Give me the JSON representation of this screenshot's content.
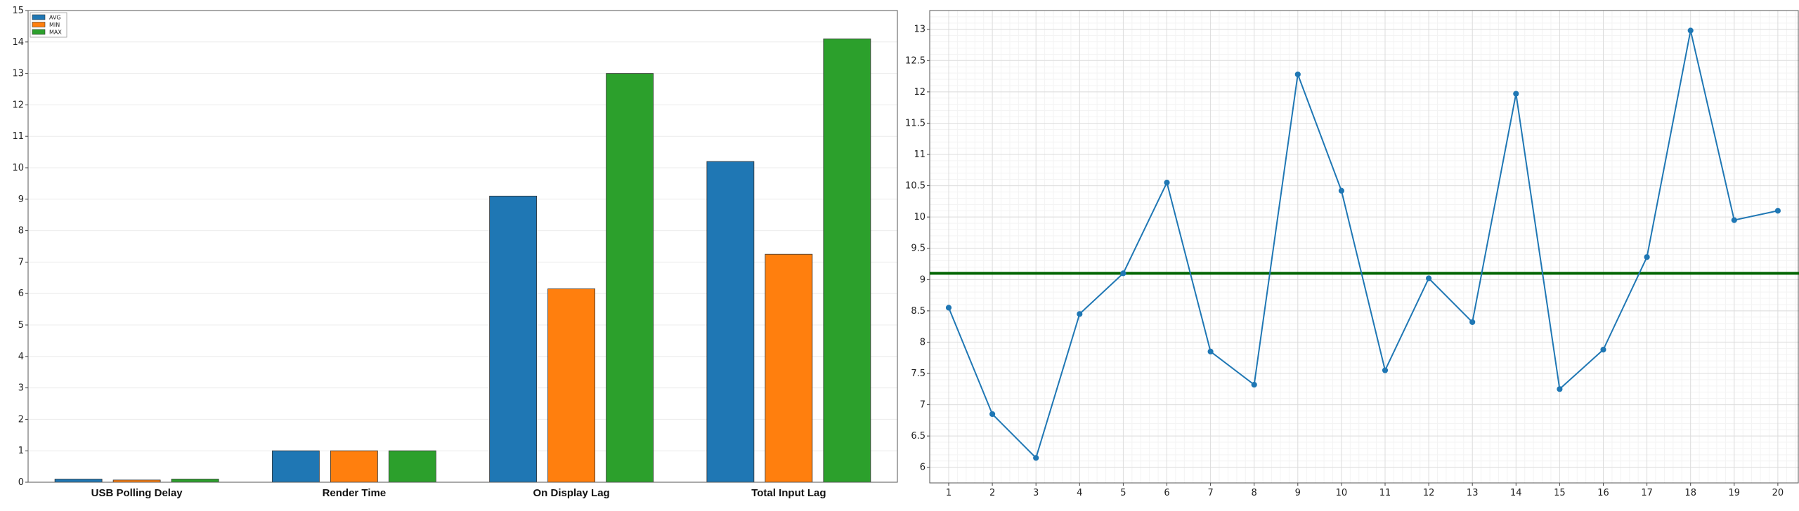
{
  "chart_data": [
    {
      "type": "bar",
      "title": "",
      "xlabel": "",
      "ylabel": "",
      "categories": [
        "USB Polling Delay",
        "Render Time",
        "On Display Lag",
        "Total Input Lag"
      ],
      "series": [
        {
          "name": "AVG",
          "color": "#1f77b4",
          "values": [
            0.1,
            1.0,
            9.1,
            10.2
          ]
        },
        {
          "name": "MIN",
          "color": "#ff7f0e",
          "values": [
            0.07,
            1.0,
            6.15,
            7.25
          ]
        },
        {
          "name": "MAX",
          "color": "#2ca02c",
          "values": [
            0.1,
            1.0,
            13.0,
            14.1
          ]
        }
      ],
      "ylim": [
        0,
        15
      ],
      "yticks": [
        "0",
        "1",
        "2",
        "3",
        "4",
        "5",
        "6",
        "7",
        "8",
        "9",
        "10",
        "11",
        "12",
        "13",
        "14",
        "15"
      ],
      "grid": "y-only",
      "legend": "top-left"
    },
    {
      "type": "line",
      "title": "",
      "xlabel": "",
      "ylabel": "",
      "x": [
        1,
        2,
        3,
        4,
        5,
        6,
        7,
        8,
        9,
        10,
        11,
        12,
        13,
        14,
        15,
        16,
        17,
        18,
        19,
        20
      ],
      "xticks": [
        "1",
        "2",
        "3",
        "4",
        "5",
        "6",
        "7",
        "8",
        "9",
        "10",
        "11",
        "12",
        "13",
        "14",
        "15",
        "16",
        "17",
        "18",
        "19",
        "20"
      ],
      "series": [
        {
          "color": "#1f77b4",
          "values": [
            8.55,
            6.85,
            6.15,
            8.45,
            9.1,
            10.55,
            7.85,
            7.32,
            12.28,
            10.42,
            7.55,
            9.02,
            8.32,
            11.97,
            7.25,
            7.88,
            9.36,
            12.98,
            9.95,
            10.1
          ]
        }
      ],
      "hline": {
        "value": 9.1,
        "color": "#006400"
      },
      "ylim": [
        5.75,
        13.3
      ],
      "yticks": [
        "6",
        "6.5",
        "7",
        "7.5",
        "8",
        "8.5",
        "9",
        "9.5",
        "10",
        "10.5",
        "11",
        "11.5",
        "12",
        "12.5",
        "13"
      ],
      "grid": "both"
    }
  ]
}
